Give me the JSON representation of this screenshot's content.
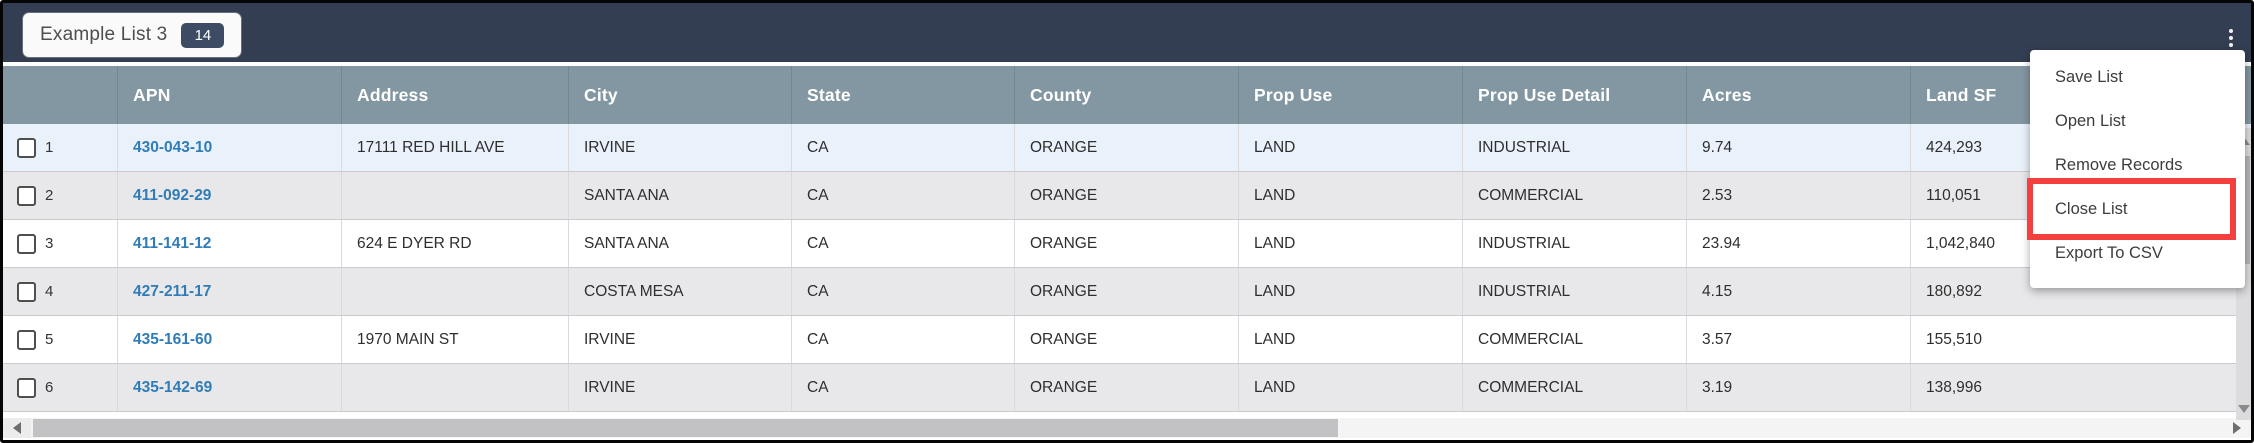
{
  "header_bar": {
    "tab_label": "Example List 3",
    "badge_count": "14",
    "menu_icon": "kebab-menu-icon"
  },
  "table": {
    "columns": [
      "APN",
      "Address",
      "City",
      "State",
      "County",
      "Prop Use",
      "Prop Use Detail",
      "Acres",
      "Land SF"
    ],
    "rows": [
      {
        "num": "1",
        "checked": false,
        "apn": "430-043-10",
        "address": "17111 RED HILL AVE",
        "city": "IRVINE",
        "state": "CA",
        "county": "ORANGE",
        "prop_use": "LAND",
        "prop_use_detail": "INDUSTRIAL",
        "acres": "9.74",
        "land_sf": "424,293"
      },
      {
        "num": "2",
        "checked": false,
        "apn": "411-092-29",
        "address": "",
        "city": "SANTA ANA",
        "state": "CA",
        "county": "ORANGE",
        "prop_use": "LAND",
        "prop_use_detail": "COMMERCIAL",
        "acres": "2.53",
        "land_sf": "110,051"
      },
      {
        "num": "3",
        "checked": false,
        "apn": "411-141-12",
        "address": "624 E DYER RD",
        "city": "SANTA ANA",
        "state": "CA",
        "county": "ORANGE",
        "prop_use": "LAND",
        "prop_use_detail": "INDUSTRIAL",
        "acres": "23.94",
        "land_sf": "1,042,840"
      },
      {
        "num": "4",
        "checked": false,
        "apn": "427-211-17",
        "address": "",
        "city": "COSTA MESA",
        "state": "CA",
        "county": "ORANGE",
        "prop_use": "LAND",
        "prop_use_detail": "INDUSTRIAL",
        "acres": "4.15",
        "land_sf": "180,892"
      },
      {
        "num": "5",
        "checked": false,
        "apn": "435-161-60",
        "address": "1970 MAIN ST",
        "city": "IRVINE",
        "state": "CA",
        "county": "ORANGE",
        "prop_use": "LAND",
        "prop_use_detail": "COMMERCIAL",
        "acres": "3.57",
        "land_sf": "155,510"
      },
      {
        "num": "6",
        "checked": false,
        "apn": "435-142-69",
        "address": "",
        "city": "IRVINE",
        "state": "CA",
        "county": "ORANGE",
        "prop_use": "LAND",
        "prop_use_detail": "COMMERCIAL",
        "acres": "3.19",
        "land_sf": "138,996"
      }
    ]
  },
  "context_menu": {
    "items": [
      "Save List",
      "Open List",
      "Remove Records",
      "Close List",
      "Export To CSV"
    ],
    "highlighted_item": "Close List"
  },
  "icons": [
    "kebab-menu-icon",
    "triangle-up-icon",
    "triangle-down-icon",
    "triangle-left-icon",
    "triangle-right-icon",
    "checkbox-icon"
  ],
  "colors": {
    "topbar": "#343E52",
    "table_header": "#8397A2",
    "row_highlight_blue": "#E9F1FA",
    "link_blue": "#2F7CB7",
    "badge_navy": "#3E4B64",
    "highlight_red": "#F3403F"
  }
}
